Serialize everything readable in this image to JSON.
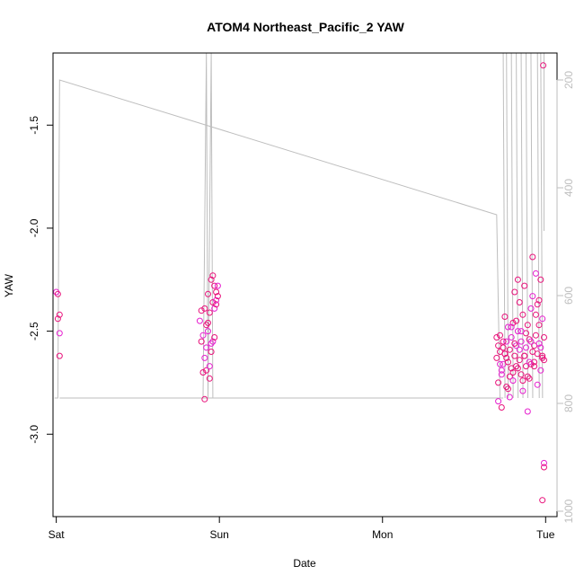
{
  "chart_data": {
    "type": "scatter",
    "title": "ATOM4 Northeast_Pacific_2 YAW",
    "xlabel": "Date",
    "ylabel": "YAW",
    "x_axis": {
      "unit": "day",
      "range": [
        -0.02,
        3.07
      ],
      "ticks": [
        {
          "value": 0,
          "label": "Sat"
        },
        {
          "value": 1,
          "label": "Sun"
        },
        {
          "value": 2,
          "label": "Mon"
        },
        {
          "value": 3,
          "label": "Tue"
        }
      ]
    },
    "y_axis": {
      "range": [
        -3.4,
        -1.15
      ],
      "ticks": [
        -1.5,
        -2.0,
        -2.5,
        -3.0
      ],
      "tick_labels": [
        "-1.5",
        "-2.0",
        "-2.5",
        "-3.0"
      ]
    },
    "y2_axis": {
      "note": "secondary axis for grey line (pressure/depth), increasing downward",
      "range": [
        1010,
        150
      ],
      "ticks": [
        200,
        400,
        600,
        800,
        1000
      ],
      "tick_labels": [
        "200",
        "400",
        "600",
        "800",
        "1000"
      ]
    },
    "grid": false,
    "colors": {
      "points": "#e8117a",
      "points_alt": "#e61fcf",
      "line": "#bebebe",
      "axis": "#000000"
    },
    "line_series": {
      "axis": "y2",
      "points": [
        [
          -0.01,
          790
        ],
        [
          0.01,
          790
        ],
        [
          0.02,
          200
        ],
        [
          2.7,
          450
        ],
        [
          2.72,
          790
        ],
        [
          2.74,
          790
        ],
        [
          0.02,
          790
        ],
        [
          0.9,
          790
        ],
        [
          0.92,
          100
        ],
        [
          0.93,
          790
        ],
        [
          0.95,
          100
        ],
        [
          0.96,
          790
        ],
        [
          1.0,
          790
        ]
      ]
    },
    "series": [
      {
        "x": [
          0.0,
          0.01,
          0.01,
          0.02,
          0.02,
          0.02,
          0.88,
          0.89,
          0.89,
          0.9,
          0.9,
          0.91,
          0.91,
          0.91,
          0.92,
          0.92,
          0.92,
          0.93,
          0.93,
          0.93,
          0.94,
          0.94,
          0.94,
          0.95,
          0.95,
          0.95,
          0.96,
          0.96,
          0.96,
          0.97,
          0.97,
          0.97,
          0.98,
          0.98,
          0.98,
          0.99,
          0.99,
          2.7,
          2.71,
          2.71,
          2.72,
          2.72,
          2.73,
          2.73,
          2.74,
          2.74,
          2.75,
          2.75,
          2.76,
          2.76,
          2.77,
          2.77,
          2.78,
          2.78,
          2.79,
          2.79,
          2.8,
          2.8,
          2.81,
          2.81,
          2.82,
          2.82,
          2.83,
          2.83,
          2.84,
          2.84,
          2.85,
          2.85,
          2.86,
          2.86,
          2.87,
          2.87,
          2.88,
          2.88,
          2.89,
          2.89,
          2.9,
          2.9,
          2.91,
          2.91,
          2.92,
          2.92,
          2.93,
          2.93,
          2.94,
          2.94,
          2.95,
          2.95,
          2.96,
          2.96,
          2.97,
          2.97,
          2.98,
          2.98,
          2.99,
          2.71,
          2.72,
          2.74,
          2.76,
          2.78,
          2.8,
          2.82,
          2.84,
          2.86,
          2.88,
          2.9,
          2.92,
          2.94,
          2.96,
          2.98,
          2.7,
          2.73,
          2.75,
          2.77,
          2.79,
          2.81,
          2.83,
          2.85,
          2.87,
          2.89,
          2.91,
          2.93,
          2.95,
          2.97,
          2.99,
          2.985,
          2.99,
          2.99,
          2.98
        ],
        "y": [
          -2.31,
          -2.32,
          -2.44,
          -2.51,
          -2.42,
          -2.62,
          -2.45,
          -2.4,
          -2.55,
          -2.52,
          -2.7,
          -2.39,
          -2.63,
          -2.83,
          -2.47,
          -2.58,
          -2.69,
          -2.32,
          -2.5,
          -2.46,
          -2.73,
          -2.67,
          -2.41,
          -2.25,
          -2.56,
          -2.6,
          -2.23,
          -2.55,
          -2.36,
          -2.28,
          -2.39,
          -2.53,
          -2.37,
          -2.35,
          -2.31,
          -2.33,
          -2.28,
          -2.63,
          -2.57,
          -2.84,
          -2.52,
          -2.6,
          -2.71,
          -2.87,
          -2.58,
          -2.66,
          -2.43,
          -2.61,
          -2.55,
          -2.77,
          -2.65,
          -2.48,
          -2.59,
          -2.72,
          -2.53,
          -2.68,
          -2.46,
          -2.74,
          -2.62,
          -2.31,
          -2.57,
          -2.67,
          -2.25,
          -2.5,
          -2.64,
          -2.36,
          -2.55,
          -2.71,
          -2.42,
          -2.79,
          -2.62,
          -2.28,
          -2.58,
          -2.67,
          -2.47,
          -2.89,
          -2.54,
          -2.73,
          -2.39,
          -2.66,
          -2.6,
          -2.33,
          -2.57,
          -2.65,
          -2.22,
          -2.52,
          -2.61,
          -2.76,
          -2.35,
          -2.47,
          -2.69,
          -2.25,
          -2.63,
          -2.44,
          -2.53,
          -2.75,
          -2.66,
          -2.55,
          -2.63,
          -2.82,
          -2.7,
          -2.45,
          -2.59,
          -2.74,
          -2.51,
          -2.65,
          -2.14,
          -2.42,
          -2.56,
          -2.62,
          -2.53,
          -2.69,
          -2.61,
          -2.78,
          -2.48,
          -2.56,
          -2.68,
          -2.5,
          -2.62,
          -2.72,
          -2.55,
          -2.67,
          -2.37,
          -2.58,
          -2.64,
          -1.21,
          -3.14,
          -3.16,
          -3.32
        ]
      }
    ]
  }
}
